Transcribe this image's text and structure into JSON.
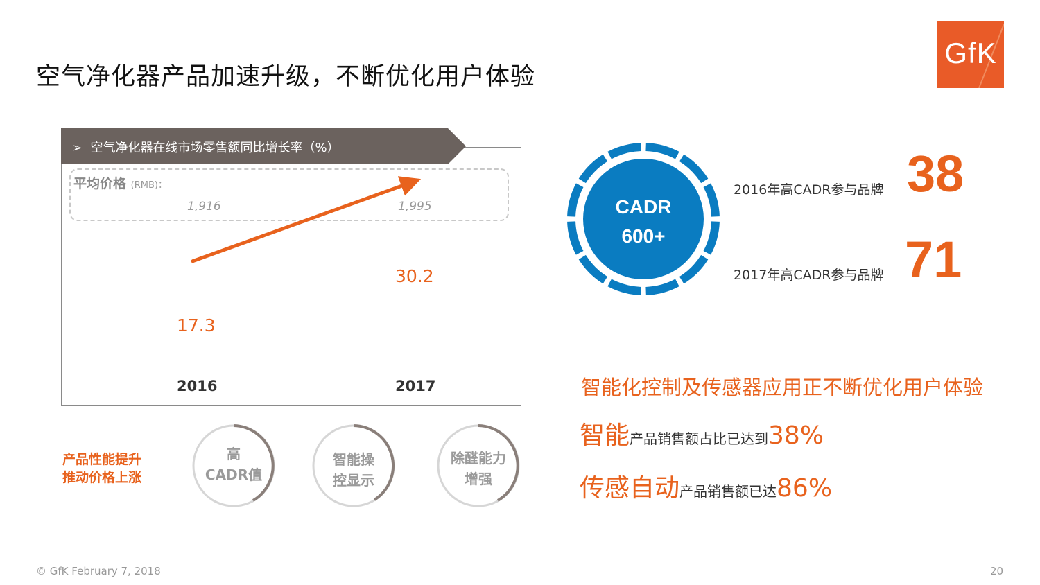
{
  "slide": {
    "title": "空气净化器产品加速升级，不断优化用户体验",
    "logo": "GfK"
  },
  "panel": {
    "header": "空气净化器在线市场零售额同比增长率（%）",
    "price_label": "平均价格",
    "price_unit": "(RMB)：",
    "prices": [
      "1,916",
      "1,995"
    ]
  },
  "chart_data": {
    "type": "line",
    "title": "空气净化器在线市场零售额同比增长率（%）",
    "categories": [
      "2016",
      "2017"
    ],
    "values": [
      17.3,
      30.2
    ],
    "value_labels": [
      "17.3",
      "30.2"
    ],
    "ylim": [
      0,
      40
    ],
    "grid": false,
    "color": "#e8621d"
  },
  "performance": {
    "label_line1": "产品性能提升",
    "label_line2": "推动价格上涨",
    "circles": [
      {
        "line1": "高",
        "line2": "CADR值"
      },
      {
        "line1": "智能操",
        "line2": "控显示"
      },
      {
        "line1": "除醛能力",
        "line2": "增强"
      }
    ]
  },
  "cadr": {
    "line1": "CADR",
    "line2": "600+",
    "brands": [
      {
        "label": "2016年高CADR参与品牌",
        "value": "38"
      },
      {
        "label": "2017年高CADR参与品牌",
        "value": "71"
      }
    ]
  },
  "insights": {
    "headline": "智能化控制及传感器应用正不断优化用户体验",
    "line1_big": "智能",
    "line1_small": "产品销售额占比已达到",
    "line1_value": "38%",
    "line2_big": "传感自动",
    "line2_small": "产品销售额已达",
    "line2_value": "86%"
  },
  "footer": {
    "copyright": "© GfK February 7, 2018",
    "page": "20"
  },
  "colors": {
    "accent": "#e8621d",
    "blue": "#0a7cc1",
    "header_gray": "#6b625e"
  }
}
